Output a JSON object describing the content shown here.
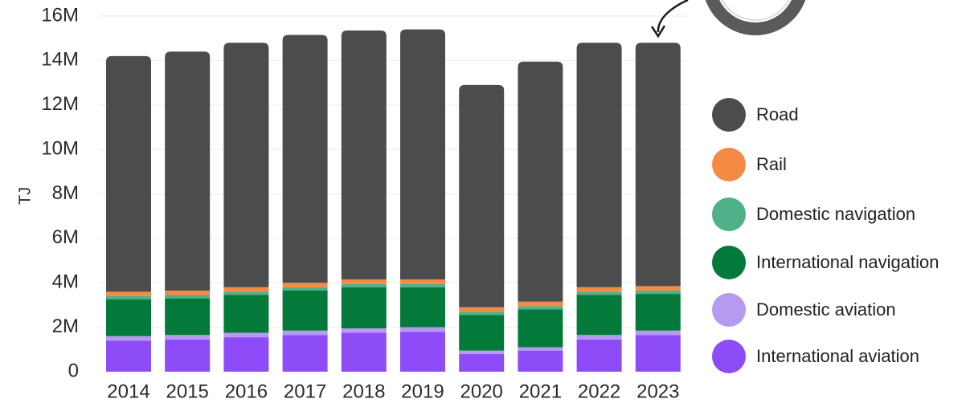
{
  "chart_data": {
    "type": "bar",
    "stacked": true,
    "ylabel": "TJ",
    "xlabel": "",
    "title": "",
    "ylim": [
      0,
      16000000
    ],
    "yticks": [
      0,
      2000000,
      4000000,
      6000000,
      8000000,
      10000000,
      12000000,
      14000000,
      16000000
    ],
    "ytick_labels": [
      "0",
      "2M",
      "4M",
      "6M",
      "8M",
      "10M",
      "12M",
      "14M",
      "16M"
    ],
    "grid": true,
    "legend_position": "right",
    "categories": [
      "2014",
      "2015",
      "2016",
      "2017",
      "2018",
      "2019",
      "2020",
      "2021",
      "2022",
      "2023"
    ],
    "series": [
      {
        "name": "International aviation",
        "color": "#8d4cf7",
        "values": [
          1400000,
          1450000,
          1550000,
          1650000,
          1750000,
          1800000,
          800000,
          950000,
          1450000,
          1650000
        ]
      },
      {
        "name": "Domestic aviation",
        "color": "#b69af0",
        "values": [
          200000,
          200000,
          200000,
          200000,
          200000,
          200000,
          150000,
          150000,
          200000,
          200000
        ]
      },
      {
        "name": "International navigation",
        "color": "#047a3a",
        "values": [
          1650000,
          1650000,
          1700000,
          1800000,
          1850000,
          1800000,
          1600000,
          1700000,
          1800000,
          1650000
        ]
      },
      {
        "name": "Domestic navigation",
        "color": "#4fb08a",
        "values": [
          150000,
          150000,
          150000,
          150000,
          150000,
          150000,
          150000,
          150000,
          150000,
          150000
        ]
      },
      {
        "name": "Rail",
        "color": "#f58a45",
        "values": [
          200000,
          200000,
          200000,
          200000,
          200000,
          200000,
          200000,
          200000,
          200000,
          200000
        ]
      },
      {
        "name": "Road",
        "color": "#4c4c4c",
        "values": [
          10600000,
          10750000,
          11000000,
          11150000,
          11200000,
          11250000,
          10000000,
          10800000,
          11000000,
          10950000
        ]
      }
    ],
    "legend_order": [
      "Road",
      "Rail",
      "Domestic navigation",
      "International navigation",
      "Domestic aviation",
      "International aviation"
    ]
  }
}
